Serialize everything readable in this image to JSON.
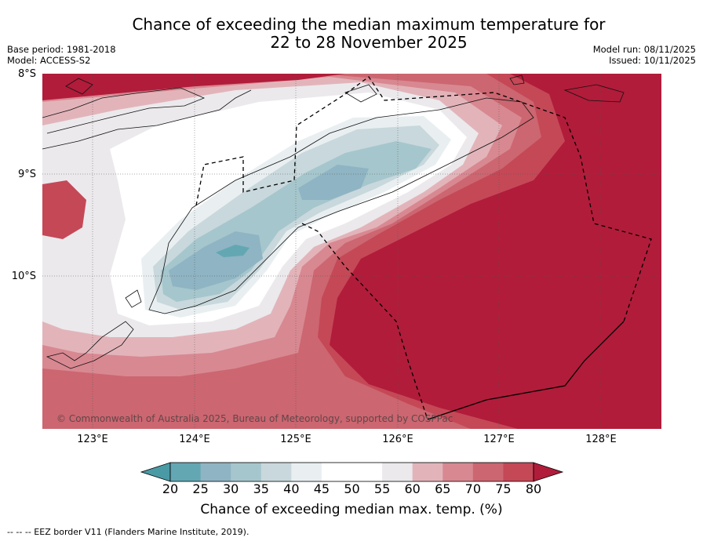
{
  "title": {
    "line1": "Chance of exceeding the median maximum temperature for",
    "line2": "22 to 28 November 2025"
  },
  "meta_left": {
    "base_period": "Base period: 1981-2018",
    "model": "Model: ACCESS-S2"
  },
  "meta_right": {
    "model_run": "Model run: 08/11/2025",
    "issued": "Issued: 10/11/2025"
  },
  "map": {
    "lat_labels": [
      "8°S",
      "9°S",
      "10°S"
    ],
    "lon_labels": [
      "123°E",
      "124°E",
      "125°E",
      "126°E",
      "127°E",
      "128°E"
    ],
    "copyright": "© Commonwealth of Australia 2025, Bureau of Meteorology, supported by COSPPac",
    "palette": {
      "ocean_hot": "#b11c3a",
      "band_75_80": "#c54857",
      "band_70_75": "#cc6670",
      "band_65_70": "#d88891",
      "band_60_65": "#e2b4ba",
      "band_55_60": "#ebe9ec",
      "band_45_55": "#ffffff",
      "band_40_45": "#e9eff1",
      "band_35_40": "#c8d8dc",
      "band_30_35": "#a5c6cc",
      "band_25_30": "#8fb4c3",
      "band_20_25": "#63a7b3"
    }
  },
  "colorbar": {
    "ticks": [
      "20",
      "25",
      "30",
      "35",
      "40",
      "45",
      "50",
      "55",
      "60",
      "65",
      "70",
      "75",
      "80"
    ],
    "colors": [
      "#63a7b3",
      "#8fb4c3",
      "#a5c6cc",
      "#c8d8dc",
      "#e9eff1",
      "#ffffff",
      "#ffffff",
      "#ebe9ec",
      "#e2b4ba",
      "#d88891",
      "#cc6670",
      "#c54857"
    ],
    "under_color": "#4a9aa6",
    "over_color": "#b11c3a",
    "label": "Chance of exceeding median max. temp. (%)"
  },
  "footnote": "--  --  -- EEZ border V11 (Flanders Marine Institute, 2019)."
}
